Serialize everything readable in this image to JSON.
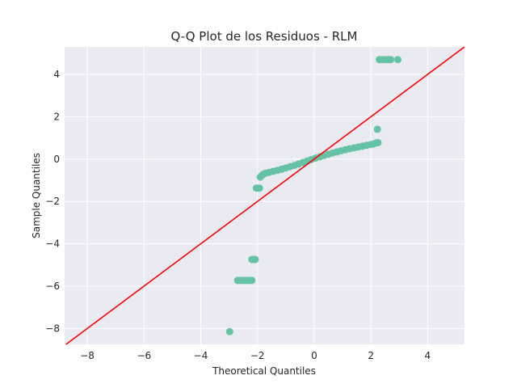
{
  "chart_data": {
    "type": "scatter",
    "title": "Q-Q Plot de los Residuos - RLM",
    "xlabel": "Theoretical Quantiles",
    "ylabel": "Sample Quantiles",
    "xlim": [
      -8.8,
      5.3
    ],
    "ylim": [
      -8.75,
      5.3
    ],
    "xticks": [
      -8,
      -6,
      -4,
      -2,
      0,
      2,
      4
    ],
    "yticks": [
      -8,
      -6,
      -4,
      -2,
      0,
      2,
      4
    ],
    "grid": true,
    "colors": {
      "background": "#eaeaf2",
      "points": "#66c2a5",
      "reference_line": "#ff0000"
    },
    "reference_line": {
      "slope": 1,
      "intercept": 0
    },
    "points": [
      {
        "x": -2.98,
        "y": -8.15
      },
      {
        "x": -2.7,
        "y": -5.73
      },
      {
        "x": -2.62,
        "y": -5.73
      },
      {
        "x": -2.55,
        "y": -5.73
      },
      {
        "x": -2.48,
        "y": -5.73
      },
      {
        "x": -2.41,
        "y": -5.73
      },
      {
        "x": -2.34,
        "y": -5.73
      },
      {
        "x": -2.27,
        "y": -5.73
      },
      {
        "x": -2.2,
        "y": -5.73
      },
      {
        "x": -2.2,
        "y": -4.74
      },
      {
        "x": -2.13,
        "y": -4.74
      },
      {
        "x": -2.08,
        "y": -4.74
      },
      {
        "x": -2.04,
        "y": -1.37
      },
      {
        "x": -1.98,
        "y": -1.37
      },
      {
        "x": -1.93,
        "y": -1.37
      },
      {
        "x": -1.9,
        "y": -0.85
      },
      {
        "x": -1.85,
        "y": -0.78
      },
      {
        "x": -1.8,
        "y": -0.72
      },
      {
        "x": -1.72,
        "y": -0.67
      },
      {
        "x": -1.6,
        "y": -0.63
      },
      {
        "x": -1.45,
        "y": -0.58
      },
      {
        "x": -1.3,
        "y": -0.53
      },
      {
        "x": -1.15,
        "y": -0.48
      },
      {
        "x": -1.0,
        "y": -0.42
      },
      {
        "x": -0.85,
        "y": -0.36
      },
      {
        "x": -0.7,
        "y": -0.3
      },
      {
        "x": -0.55,
        "y": -0.23
      },
      {
        "x": -0.4,
        "y": -0.16
      },
      {
        "x": -0.25,
        "y": -0.09
      },
      {
        "x": -0.1,
        "y": -0.02
      },
      {
        "x": 0.05,
        "y": 0.05
      },
      {
        "x": 0.2,
        "y": 0.11
      },
      {
        "x": 0.35,
        "y": 0.17
      },
      {
        "x": 0.5,
        "y": 0.23
      },
      {
        "x": 0.65,
        "y": 0.29
      },
      {
        "x": 0.8,
        "y": 0.34
      },
      {
        "x": 0.95,
        "y": 0.39
      },
      {
        "x": 1.1,
        "y": 0.44
      },
      {
        "x": 1.25,
        "y": 0.49
      },
      {
        "x": 1.4,
        "y": 0.53
      },
      {
        "x": 1.55,
        "y": 0.57
      },
      {
        "x": 1.7,
        "y": 0.61
      },
      {
        "x": 1.85,
        "y": 0.65
      },
      {
        "x": 2.0,
        "y": 0.69
      },
      {
        "x": 2.1,
        "y": 0.72
      },
      {
        "x": 2.2,
        "y": 0.77
      },
      {
        "x": 2.25,
        "y": 0.78
      },
      {
        "x": 2.23,
        "y": 1.41
      },
      {
        "x": 2.3,
        "y": 4.7
      },
      {
        "x": 2.38,
        "y": 4.7
      },
      {
        "x": 2.46,
        "y": 4.7
      },
      {
        "x": 2.54,
        "y": 4.7
      },
      {
        "x": 2.62,
        "y": 4.7
      },
      {
        "x": 2.7,
        "y": 4.7
      },
      {
        "x": 2.95,
        "y": 4.7
      }
    ]
  }
}
